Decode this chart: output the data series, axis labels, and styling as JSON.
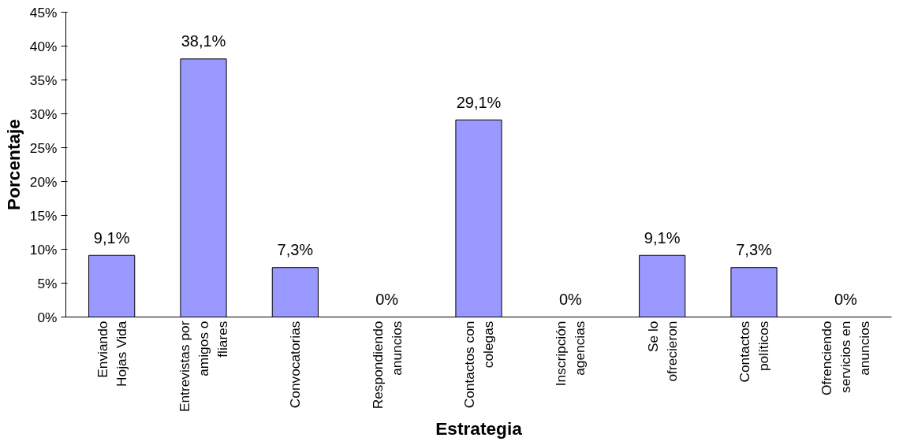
{
  "chart_data": {
    "type": "bar",
    "xlabel": "Estrategia",
    "ylabel": "Porcentaje",
    "categories": [
      "Enviando\nHojas Vida",
      "Entrevistas por\namigos o\nfliares",
      "Convocatorias",
      "Respondiendo\nanuncios",
      "Contactos con\ncolegas",
      "Inscripción\nagencias",
      "Se lo\nofrecieron",
      "Contactos\npolíticos",
      "Ofrenciendo\nservicios en\nanuncios"
    ],
    "values": [
      9.1,
      38.1,
      7.3,
      0,
      29.1,
      0,
      9.1,
      7.3,
      0
    ],
    "value_labels": [
      "9,1%",
      "38,1%",
      "7,3%",
      "0%",
      "29,1%",
      "0%",
      "9,1%",
      "7,3%",
      "0%"
    ],
    "color": "#9999ff",
    "ylim": [
      0,
      45
    ],
    "yticks": [
      {
        "value": 0,
        "label": "0%"
      },
      {
        "value": 5,
        "label": "5%"
      },
      {
        "value": 10,
        "label": "10%"
      },
      {
        "value": 15,
        "label": "15%"
      },
      {
        "value": 20,
        "label": "20%"
      },
      {
        "value": 25,
        "label": "25%"
      },
      {
        "value": 30,
        "label": "30%"
      },
      {
        "value": 35,
        "label": "35%"
      },
      {
        "value": 40,
        "label": "40%"
      },
      {
        "value": 45,
        "label": "45%"
      }
    ],
    "grid": false
  }
}
